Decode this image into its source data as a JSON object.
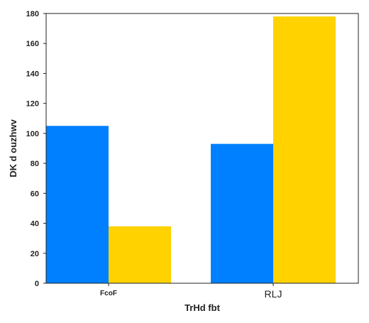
{
  "chart_data": {
    "type": "bar",
    "categories": [
      "FcoF",
      "RLJ"
    ],
    "series": [
      {
        "values": [
          105,
          93
        ],
        "color": "#0080ff"
      },
      {
        "values": [
          38,
          178
        ],
        "color": "#ffd200"
      }
    ],
    "xlabel": "TrHd fbt",
    "ylabel": "DK d ouzhwv",
    "ylim": [
      0,
      180
    ],
    "yticks": [
      0,
      20,
      40,
      60,
      80,
      100,
      120,
      140,
      160,
      180
    ],
    "grid": false,
    "legend": false
  }
}
